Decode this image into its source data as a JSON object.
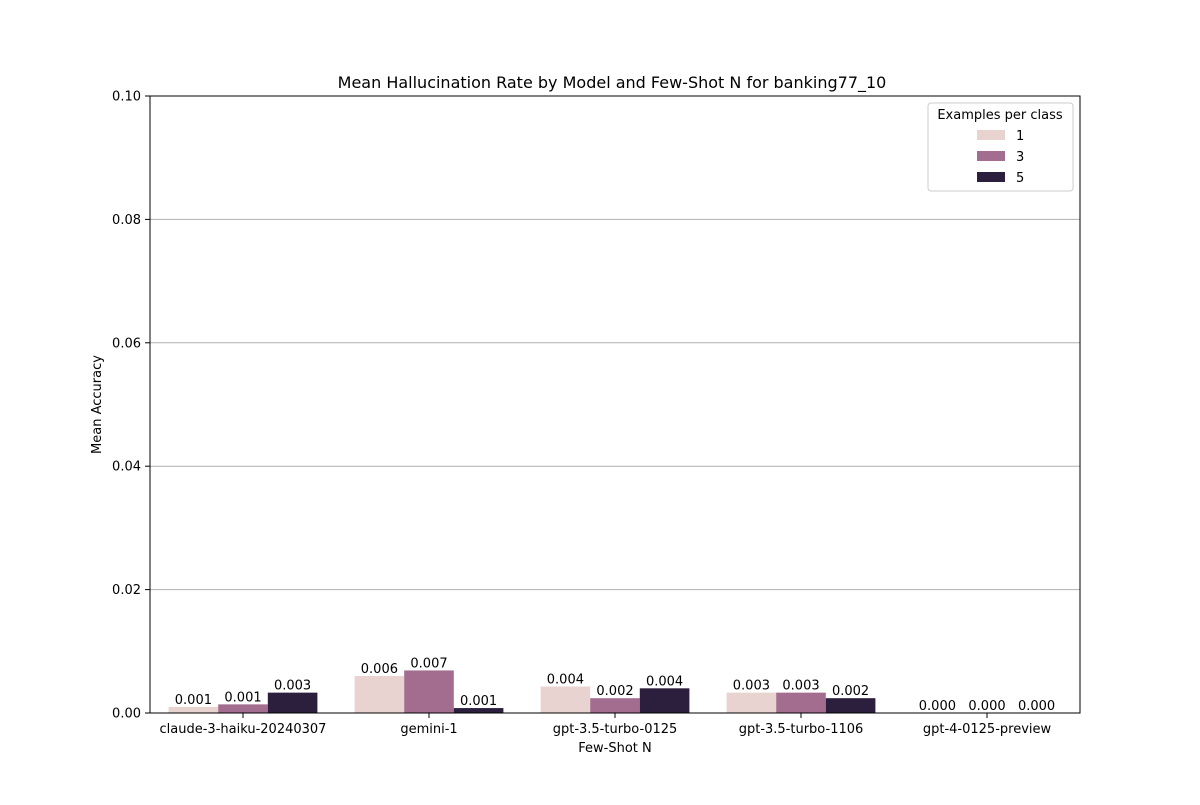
{
  "chart_data": {
    "type": "bar",
    "title": "Mean Hallucination Rate by Model and Few-Shot N for banking77_10",
    "xlabel": "Few-Shot N",
    "ylabel": "Mean Accuracy",
    "ylim": [
      0,
      0.1
    ],
    "yticks": [
      0.0,
      0.02,
      0.04,
      0.06,
      0.08,
      0.1
    ],
    "ytick_labels": [
      "0.00",
      "0.02",
      "0.04",
      "0.06",
      "0.08",
      "0.10"
    ],
    "grid": "horizontal",
    "categories": [
      "claude-3-haiku-20240307",
      "gemini-1",
      "gpt-3.5-turbo-0125",
      "gpt-3.5-turbo-1106",
      "gpt-4-0125-preview"
    ],
    "legend": {
      "title": "Examples per class",
      "placement": "top-right"
    },
    "series": [
      {
        "name": "1",
        "color": "#e8d3d0",
        "values": [
          0.001,
          0.006,
          0.0043,
          0.0033,
          0.0
        ],
        "data_labels": [
          "0.001",
          "0.006",
          "0.004",
          "0.003",
          "0.000"
        ]
      },
      {
        "name": "3",
        "color": "#a26d8f",
        "values": [
          0.0014,
          0.0069,
          0.0024,
          0.0033,
          0.0
        ],
        "data_labels": [
          "0.001",
          "0.007",
          "0.002",
          "0.003",
          "0.000"
        ]
      },
      {
        "name": "5",
        "color": "#2c1e3d",
        "values": [
          0.0033,
          0.0008,
          0.004,
          0.0024,
          0.0
        ],
        "data_labels": [
          "0.003",
          "0.001",
          "0.004",
          "0.002",
          "0.000"
        ]
      }
    ]
  }
}
